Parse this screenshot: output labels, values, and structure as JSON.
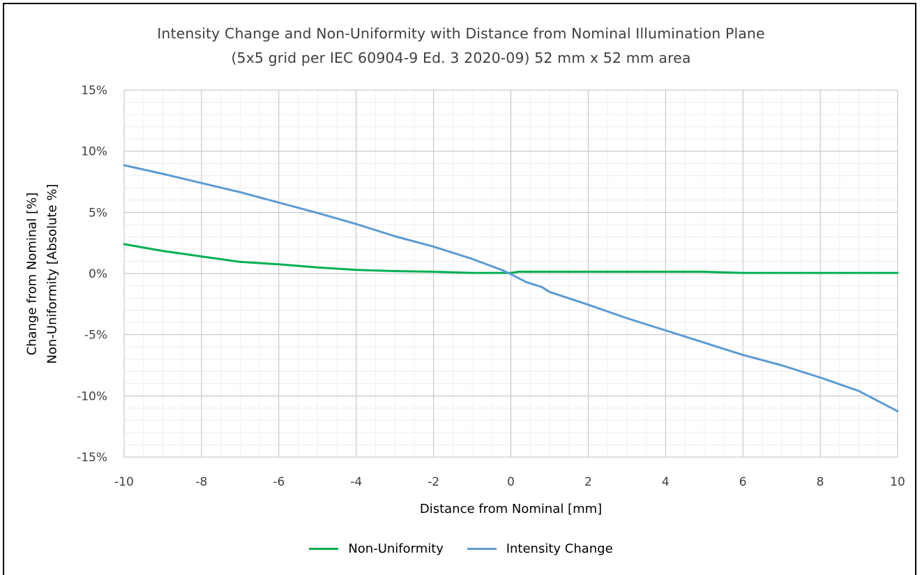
{
  "chart_data": {
    "type": "line",
    "title": "Intensity Change and Non-Uniformity with Distance from Nominal Illumination Plane",
    "subtitle": "(5x5 grid per IEC  60904-9 Ed. 3  2020-09)   52 mm x 52 mm area",
    "xlabel": "Distance from Nominal  [mm]",
    "ylabel_lines": [
      "Change from Nominal  [%]",
      "Non-Uniformity [Absolute %]"
    ],
    "xlim": [
      -10,
      10
    ],
    "ylim": [
      -15,
      15
    ],
    "x_ticks": [
      "-10",
      "-8",
      "-6",
      "-4",
      "-2",
      "0",
      "2",
      "4",
      "6",
      "8",
      "10"
    ],
    "y_ticks": [
      "15%",
      "10%",
      "5%",
      "0%",
      "-5%",
      "-10%",
      "-15%"
    ],
    "grid": true,
    "legend_position": "bottom",
    "series": [
      {
        "name": "Non-Uniformity",
        "color": "#00b050",
        "x": [
          -10,
          -9,
          -8,
          -7,
          -6,
          -5,
          -4,
          -3,
          -2,
          -1,
          0,
          0.2,
          1,
          2,
          3,
          4,
          5,
          6,
          7,
          8,
          9,
          10
        ],
        "y": [
          2.4,
          1.85,
          1.4,
          0.95,
          0.75,
          0.5,
          0.3,
          0.2,
          0.15,
          0.05,
          0.05,
          0.15,
          0.15,
          0.15,
          0.15,
          0.15,
          0.15,
          0.05,
          0.05,
          0.05,
          0.05,
          0.05
        ]
      },
      {
        "name": "Intensity Change",
        "color": "#5b9bd5",
        "x": [
          -10,
          -9,
          -8,
          -7,
          -6,
          -5,
          -4,
          -3,
          -2,
          -1,
          -0.2,
          0,
          0.4,
          0.8,
          1,
          2,
          3,
          4,
          5,
          6,
          7,
          8,
          9,
          10
        ],
        "y": [
          8.85,
          8.15,
          7.4,
          6.65,
          5.8,
          4.95,
          4.05,
          3.05,
          2.2,
          1.2,
          0.25,
          -0.05,
          -0.7,
          -1.1,
          -1.5,
          -2.55,
          -3.65,
          -4.65,
          -5.65,
          -6.65,
          -7.5,
          -8.5,
          -9.6,
          -11.25
        ]
      }
    ]
  }
}
